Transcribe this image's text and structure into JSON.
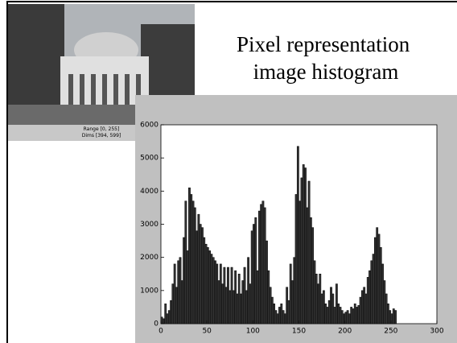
{
  "slide": {
    "title": "Pixel representation image histogram",
    "image_caption": [
      "Range [0, 255]",
      "Dims [394, 599]"
    ]
  },
  "chart_data": {
    "type": "histogram",
    "color": "#333333",
    "bins": [
      0,
      2,
      4,
      6,
      8,
      10,
      12,
      14,
      16,
      18,
      20,
      22,
      24,
      26,
      28,
      30,
      32,
      34,
      36,
      38,
      40,
      42,
      44,
      46,
      48,
      50,
      52,
      54,
      56,
      58,
      60,
      62,
      64,
      66,
      68,
      70,
      72,
      74,
      76,
      78,
      80,
      82,
      84,
      86,
      88,
      90,
      92,
      94,
      96,
      98,
      100,
      102,
      104,
      106,
      108,
      110,
      112,
      114,
      116,
      118,
      120,
      122,
      124,
      126,
      128,
      130,
      132,
      134,
      136,
      138,
      140,
      142,
      144,
      146,
      148,
      150,
      152,
      154,
      156,
      158,
      160,
      162,
      164,
      166,
      168,
      170,
      172,
      174,
      176,
      178,
      180,
      182,
      184,
      186,
      188,
      190,
      192,
      194,
      196,
      198,
      200,
      202,
      204,
      206,
      208,
      210,
      212,
      214,
      216,
      218,
      220,
      222,
      224,
      226,
      228,
      230,
      232,
      234,
      236,
      238,
      240,
      242,
      244,
      246,
      248,
      250,
      252,
      254,
      256
    ],
    "values": [
      200,
      150,
      600,
      300,
      400,
      700,
      1200,
      1800,
      1100,
      1900,
      2000,
      1300,
      2600,
      3700,
      2200,
      4100,
      3900,
      3700,
      3500,
      2800,
      3300,
      3000,
      2900,
      2600,
      2400,
      2300,
      2200,
      2100,
      2000,
      1900,
      1800,
      1300,
      1800,
      1200,
      1700,
      1100,
      1700,
      1000,
      1700,
      1000,
      1600,
      900,
      1500,
      900,
      1300,
      1700,
      1000,
      2000,
      1200,
      2800,
      3000,
      3200,
      1600,
      3400,
      3600,
      3700,
      3500,
      2500,
      1600,
      1100,
      800,
      600,
      400,
      300,
      500,
      600,
      400,
      300,
      1100,
      700,
      1800,
      1300,
      2000,
      3900,
      5350,
      3700,
      4400,
      4800,
      4700,
      3500,
      4300,
      3200,
      2900,
      1900,
      1500,
      1200,
      1500,
      900,
      1000,
      600,
      500,
      700,
      1100,
      900,
      500,
      1200,
      600,
      500,
      400,
      300,
      350,
      400,
      300,
      500,
      450,
      600,
      500,
      550,
      800,
      1000,
      1100,
      900,
      1400,
      1600,
      1900,
      2100,
      2600,
      2900,
      2700,
      2300,
      1800,
      1300,
      900,
      600,
      400,
      300,
      450,
      400
    ],
    "xlim": [
      0,
      300
    ],
    "ylim": [
      0,
      6000
    ],
    "xticks": [
      0,
      50,
      100,
      150,
      200,
      250,
      300
    ],
    "yticks": [
      0,
      1000,
      2000,
      3000,
      4000,
      5000,
      6000
    ]
  }
}
